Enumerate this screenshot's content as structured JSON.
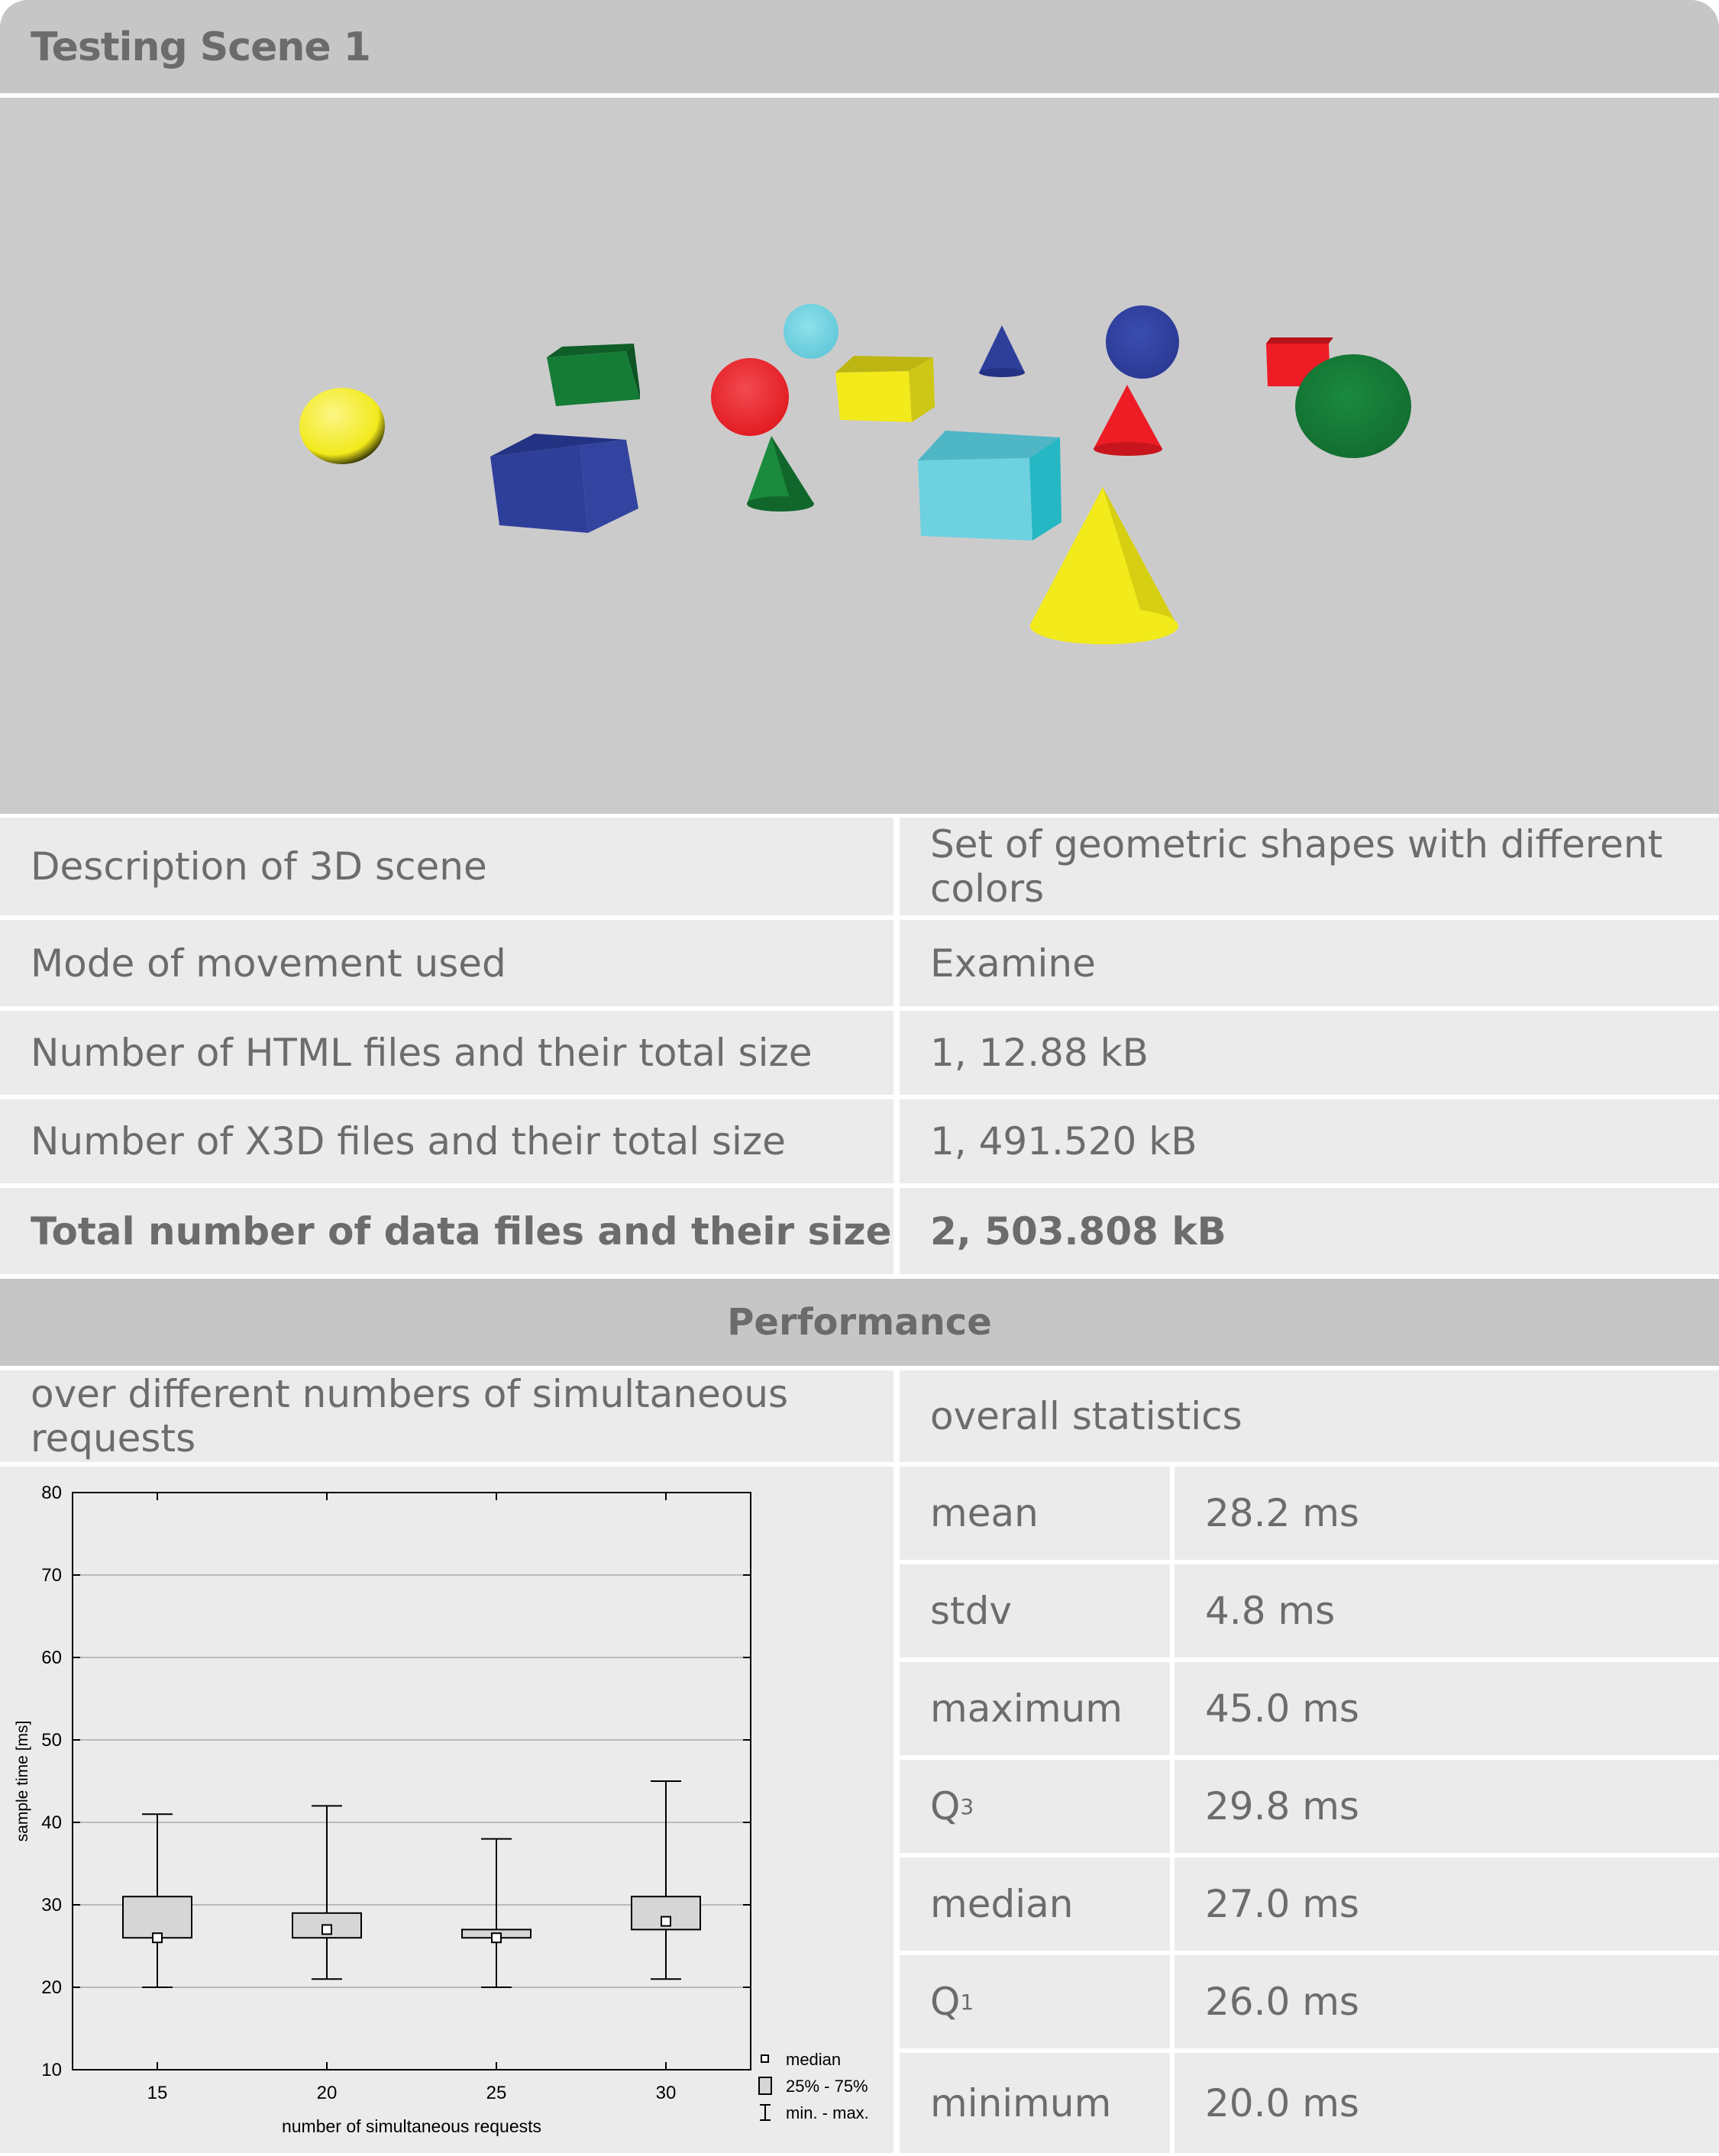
{
  "title": "Testing Scene 1",
  "info_rows": [
    {
      "label": "Description of 3D scene",
      "value": "Set of geometric shapes with different colors"
    },
    {
      "label": "Mode of movement used",
      "value": "Examine"
    },
    {
      "label": "Number of HTML files and their total size",
      "value": "1, 12.88 kB"
    },
    {
      "label": "Number of X3D files and their total size",
      "value": "1, 491.520 kB"
    },
    {
      "label": "Total number of data files and their size",
      "value": "2, 503.808 kB"
    }
  ],
  "performance": {
    "heading": "Performance",
    "chart_heading": "over different numbers of simultaneous requests",
    "stats_heading": "overall statistics",
    "stats": [
      {
        "label": "mean",
        "sub": "",
        "value": "28.2 ms"
      },
      {
        "label": "stdv",
        "sub": "",
        "value": "4.8 ms"
      },
      {
        "label": "maximum",
        "sub": "",
        "value": "45.0 ms"
      },
      {
        "label": "Q",
        "sub": "3",
        "value": "29.8 ms"
      },
      {
        "label": "median",
        "sub": "",
        "value": "27.0 ms"
      },
      {
        "label": "Q",
        "sub": "1",
        "value": "26.0 ms"
      },
      {
        "label": "minimum",
        "sub": "",
        "value": "20.0 ms"
      }
    ]
  },
  "scene_shapes": [
    {
      "kind": "sphere",
      "name": "yellow-sphere",
      "color": "#f2ea1b"
    },
    {
      "kind": "box",
      "name": "green-box",
      "color": "#157c36"
    },
    {
      "kind": "box",
      "name": "blue-box",
      "color": "#2e3f9a"
    },
    {
      "kind": "sphere",
      "name": "red-sphere",
      "color": "#ee1c25"
    },
    {
      "kind": "sphere",
      "name": "cyan-sphere",
      "color": "#6dd1e0"
    },
    {
      "kind": "cone",
      "name": "green-cone",
      "color": "#1a8a3c"
    },
    {
      "kind": "box",
      "name": "yellow-box",
      "color": "#f2ea1b"
    },
    {
      "kind": "cone",
      "name": "small-blue-cone",
      "color": "#2e3f9a"
    },
    {
      "kind": "box",
      "name": "cyan-box",
      "color": "#6dd1e0"
    },
    {
      "kind": "sphere",
      "name": "blue-sphere",
      "color": "#2e3f9a"
    },
    {
      "kind": "cone",
      "name": "red-cone",
      "color": "#ee1c25"
    },
    {
      "kind": "box",
      "name": "red-box",
      "color": "#ee1c25"
    },
    {
      "kind": "sphere",
      "name": "green-sphere",
      "color": "#157c36"
    },
    {
      "kind": "cone",
      "name": "yellow-cone",
      "color": "#f2ea1b"
    }
  ],
  "chart_data": {
    "type": "box",
    "title": "",
    "xlabel": "number of simultaneous requests",
    "ylabel": "sample time [ms]",
    "categories": [
      "15",
      "20",
      "25",
      "30"
    ],
    "ylim": [
      10,
      80
    ],
    "yticks": [
      "10",
      "20",
      "30",
      "40",
      "50",
      "60",
      "70",
      "80"
    ],
    "grid": true,
    "boxes": [
      {
        "category": "15",
        "min": 20,
        "q1": 26,
        "median": 26,
        "q3": 31,
        "max": 41
      },
      {
        "category": "20",
        "min": 21,
        "q1": 26,
        "median": 27,
        "q3": 29,
        "max": 42
      },
      {
        "category": "25",
        "min": 20,
        "q1": 26,
        "median": 26,
        "q3": 27,
        "max": 38
      },
      {
        "category": "30",
        "min": 21,
        "q1": 27,
        "median": 28,
        "q3": 31,
        "max": 45
      }
    ],
    "legend": {
      "position": "bottom-right",
      "items": [
        {
          "marker": "median",
          "label": "median"
        },
        {
          "marker": "box",
          "label": "25% - 75%"
        },
        {
          "marker": "whisker",
          "label": "min. - max."
        }
      ]
    }
  }
}
